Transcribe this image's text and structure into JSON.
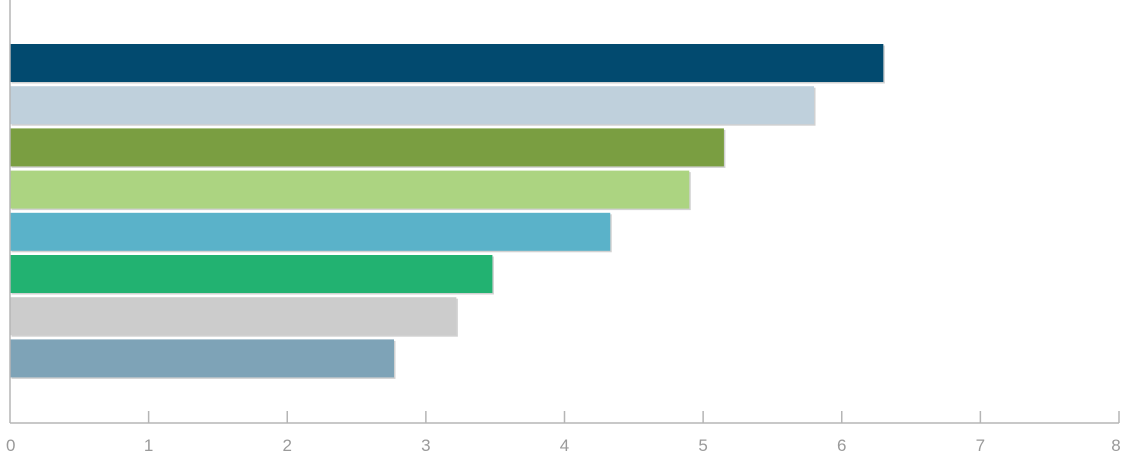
{
  "chart_data": {
    "type": "bar",
    "orientation": "horizontal",
    "title": "",
    "xlabel": "",
    "ylabel": "",
    "xlim": [
      0,
      8
    ],
    "x_ticks": [
      "0",
      "1",
      "2",
      "3",
      "4",
      "5",
      "6",
      "7",
      "8"
    ],
    "grid": false,
    "legend": "none",
    "values": [
      6.3,
      5.8,
      5.15,
      4.9,
      4.33,
      3.48,
      3.22,
      2.77
    ],
    "colors": [
      "#024a6f",
      "#bfd0dc",
      "#7a9e41",
      "#acd481",
      "#5ab2c9",
      "#22b271",
      "#cccccc",
      "#7ea3b7"
    ]
  }
}
